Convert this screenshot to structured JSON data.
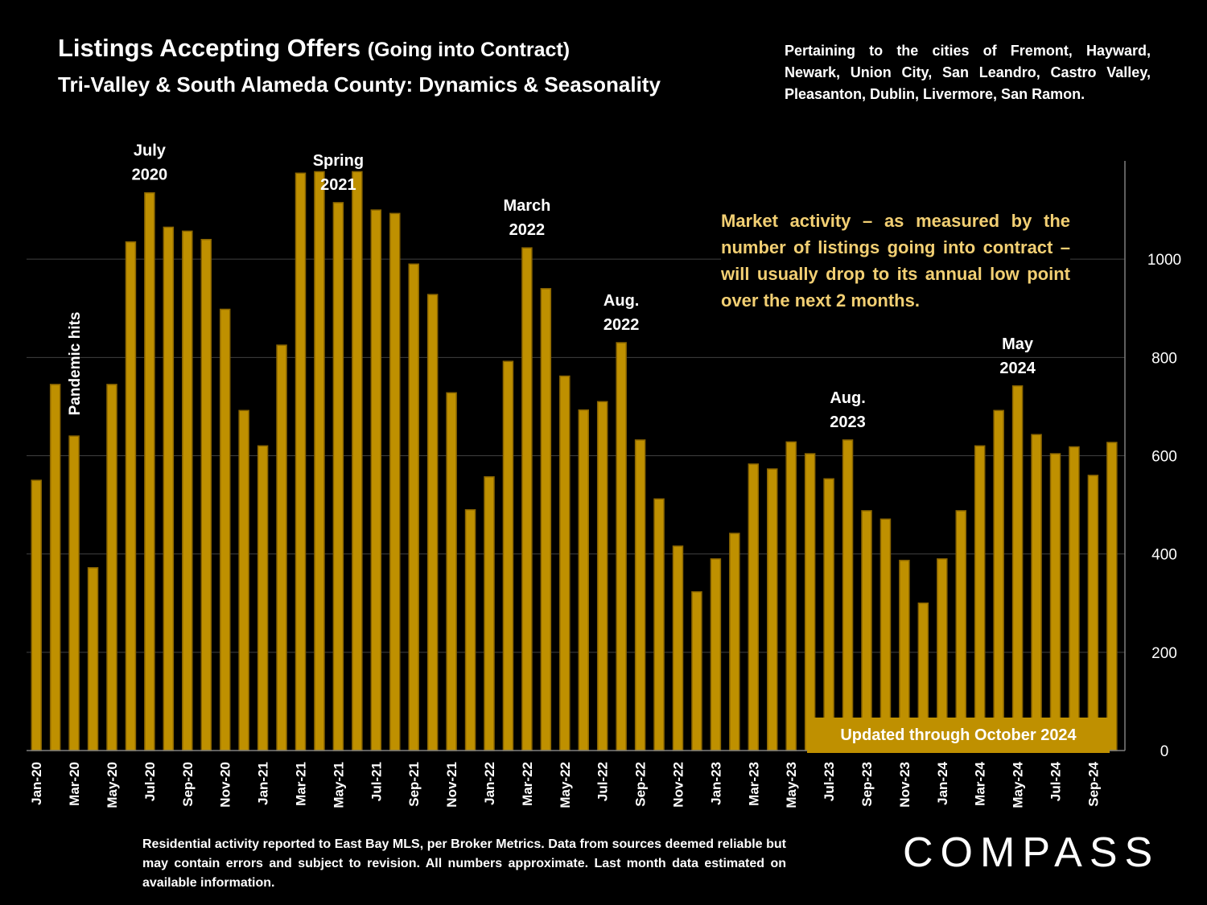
{
  "header": {
    "title": "Listings Accepting Offers",
    "title_paren": "(Going into Contract)",
    "subtitle": "Tri-Valley & South Alameda County: Dynamics & Seasonality",
    "cities_note": "Pertaining to the cities of Fremont, Hayward, Newark, Union City, San Leandro, Castro Valley, Pleasanton, Dublin, Livermore, San Ramon."
  },
  "callout": "Market activity – as measured by the number of listings going into contract – will usually drop to its annual low point over the next 2 months.",
  "updated_label": "Updated through October 2024",
  "footnote": "Residential activity reported to East Bay MLS, per Broker Metrics. Data from sources deemed reliable but may contain errors and subject to revision.  All numbers approximate. Last month data estimated on available information.",
  "brand": "COMPASS",
  "colors": {
    "bar_fill": "#bf9000",
    "bar_stroke": "#8a6500",
    "callout_text": "#f2cf73",
    "grid": "#404040"
  },
  "chart_data": {
    "type": "bar",
    "categories": [
      "Jan-20",
      "Feb-20",
      "Mar-20",
      "Apr-20",
      "May-20",
      "Jun-20",
      "Jul-20",
      "Aug-20",
      "Sep-20",
      "Oct-20",
      "Nov-20",
      "Dec-20",
      "Jan-21",
      "Feb-21",
      "Mar-21",
      "Apr-21",
      "May-21",
      "Jun-21",
      "Jul-21",
      "Aug-21",
      "Sep-21",
      "Oct-21",
      "Nov-21",
      "Dec-21",
      "Jan-22",
      "Feb-22",
      "Mar-22",
      "Apr-22",
      "May-22",
      "Jun-22",
      "Jul-22",
      "Aug-22",
      "Sep-22",
      "Oct-22",
      "Nov-22",
      "Dec-22",
      "Jan-23",
      "Feb-23",
      "Mar-23",
      "Apr-23",
      "May-23",
      "Jun-23",
      "Jul-23",
      "Aug-23",
      "Sep-23",
      "Oct-23",
      "Nov-23",
      "Dec-23",
      "Jan-24",
      "Feb-24",
      "Mar-24",
      "Apr-24",
      "May-24",
      "Jun-24",
      "Jul-24",
      "Aug-24",
      "Sep-24",
      "Oct-24"
    ],
    "tick_labels": [
      "Jan-20",
      "Mar-20",
      "May-20",
      "Jul-20",
      "Sep-20",
      "Nov-20",
      "Jan-21",
      "Mar-21",
      "May-21",
      "Jul-21",
      "Sep-21",
      "Nov-21",
      "Jan-22",
      "Mar-22",
      "May-22",
      "Jul-22",
      "Sep-22",
      "Nov-22",
      "Jan-23",
      "Mar-23",
      "May-23",
      "Jul-23",
      "Sep-23",
      "Nov-23",
      "Jan-24",
      "Mar-24",
      "May-24",
      "Jul-24",
      "Sep-24"
    ],
    "values": [
      550,
      745,
      640,
      372,
      745,
      1035,
      1135,
      1065,
      1057,
      1040,
      898,
      692,
      620,
      825,
      1175,
      1178,
      1115,
      1178,
      1100,
      1093,
      990,
      928,
      728,
      490,
      557,
      792,
      1023,
      940,
      762,
      693,
      710,
      830,
      632,
      512,
      416,
      323,
      390,
      442,
      583,
      573,
      628,
      604,
      553,
      632,
      488,
      471,
      387,
      300,
      390,
      488,
      620,
      692,
      742,
      643,
      604,
      618,
      560,
      627
    ],
    "ylim": [
      0,
      1200
    ],
    "y_ticks": [
      0,
      200,
      400,
      600,
      800,
      1000
    ],
    "y_axis_side": "right",
    "grid": true,
    "annotations": [
      {
        "text_lines": [
          "Pandemic hits"
        ],
        "index": 2,
        "vertical": true
      },
      {
        "text_lines": [
          "July",
          "2020"
        ],
        "index": 6
      },
      {
        "text_lines": [
          "Spring",
          "2021"
        ],
        "index": 16
      },
      {
        "text_lines": [
          "March",
          "2022"
        ],
        "index": 26
      },
      {
        "text_lines": [
          "Aug.",
          "2022"
        ],
        "index": 31
      },
      {
        "text_lines": [
          "Aug.",
          "2023"
        ],
        "index": 43
      },
      {
        "text_lines": [
          "May",
          "2024"
        ],
        "index": 52
      }
    ]
  }
}
